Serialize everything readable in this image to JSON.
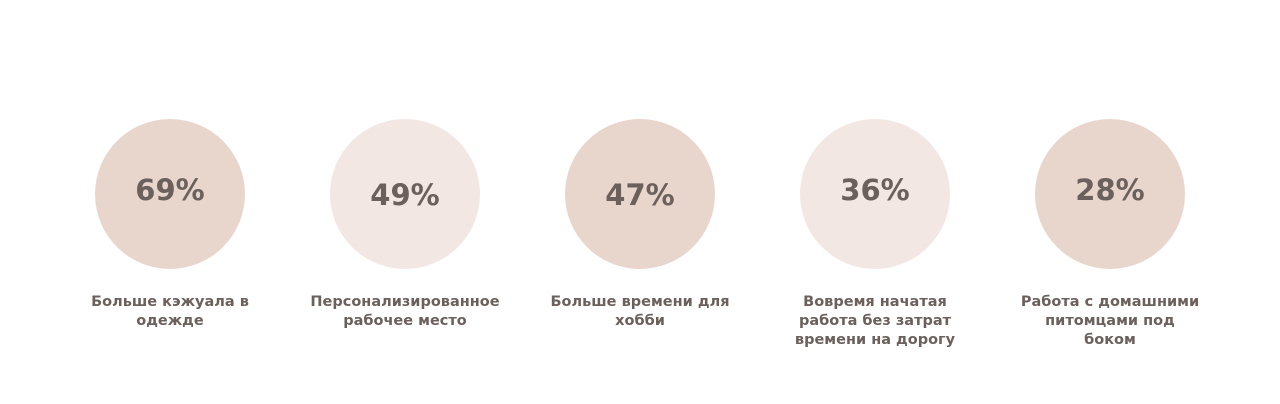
{
  "chart_data": {
    "type": "table",
    "unit": "%",
    "items": [
      {
        "value": 69,
        "display": "69%",
        "label_lines": [
          "Больше кэжуала в",
          "одежде"
        ],
        "circle_color": "#e8d6cd"
      },
      {
        "value": 49,
        "display": "49%",
        "label_lines": [
          "Персонализированное",
          "рабочее место"
        ],
        "circle_color": "#f2e7e3"
      },
      {
        "value": 47,
        "display": "47%",
        "label_lines": [
          "Больше времени для",
          "хобби"
        ],
        "circle_color": "#e8d6cd"
      },
      {
        "value": 36,
        "display": "36%",
        "label_lines": [
          "Вовремя начатая",
          "работа без затрат",
          "времени на дорогу"
        ],
        "circle_color": "#f2e7e3"
      },
      {
        "value": 28,
        "display": "28%",
        "label_lines": [
          "Работа с домашними",
          "питомцами под",
          "боком"
        ],
        "circle_color": "#e8d6cd"
      }
    ]
  }
}
